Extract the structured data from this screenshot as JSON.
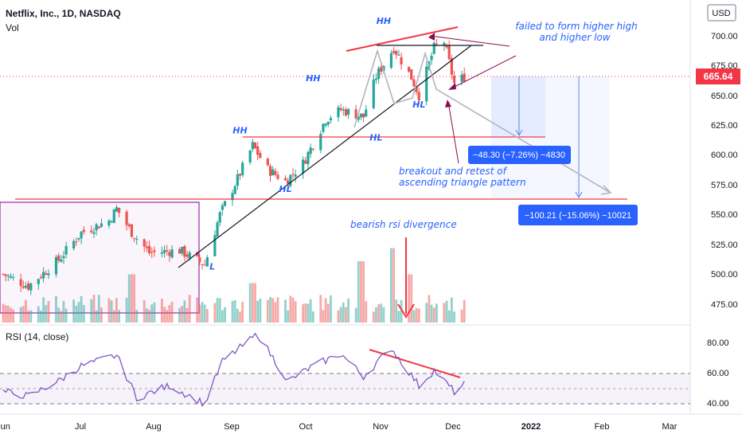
{
  "header": {
    "symbol": "Netflix, Inc., 1D, NASDAQ",
    "volume_label": "Vol",
    "currency": "USD"
  },
  "rsi_panel": {
    "label": "RSI (14, close)",
    "ticks": [
      "80.00",
      "60.00",
      "40.00"
    ]
  },
  "price_axis": {
    "ticks": [
      "700.00",
      "675.00",
      "650.00",
      "625.00",
      "600.00",
      "575.00",
      "550.00",
      "525.00",
      "500.00",
      "475.00"
    ],
    "current_price": "665.64"
  },
  "time_axis": {
    "labels": [
      "Jun",
      "Jul",
      "Aug",
      "Sep",
      "Oct",
      "Nov",
      "Dec",
      "2022",
      "Feb",
      "Mar"
    ]
  },
  "annotations": {
    "failed": [
      "failed to form higher high",
      "and higher low"
    ],
    "breakout": [
      "breakout and retest of",
      "ascending triangle pattern"
    ],
    "rsi_div": "bearish rsi divergence",
    "target1": "−48.30 (−7.26%) −4830",
    "target2": "−100.21 (−15.06%) −10021"
  },
  "pattern_labels": [
    {
      "text": "HH",
      "time": "2021-09-02",
      "price": 618
    },
    {
      "text": "HH",
      "time": "2021-10-01",
      "price": 662
    },
    {
      "text": "HH",
      "time": "2021-10-29",
      "price": 710
    },
    {
      "text": "HL",
      "time": "2021-09-20",
      "price": 569
    },
    {
      "text": "HL",
      "time": "2021-10-26",
      "price": 612
    },
    {
      "text": "HL",
      "time": "2021-11-12",
      "price": 640
    },
    {
      "text": "L",
      "time": "2021-08-22",
      "price": 504
    }
  ],
  "colors": {
    "up": "#26a69a",
    "down": "#ef5350",
    "annotation": "#2962ff",
    "rsi": "#7e57c2",
    "resistance": "#f23645",
    "price_tag": "#f23645",
    "target_box": "#2962ff"
  },
  "chart_data": [
    {
      "type": "candlestick",
      "title": "Netflix, Inc., 1D, NASDAQ",
      "ylim": [
        465,
        735
      ],
      "xlim": [
        "2021-05-31",
        "2022-03-04"
      ],
      "anchors": [
        {
          "time": "2021-05-31",
          "close": 500
        },
        {
          "time": "2021-06-10",
          "close": 490
        },
        {
          "time": "2021-06-22",
          "close": 512
        },
        {
          "time": "2021-07-01",
          "close": 535
        },
        {
          "time": "2021-07-12",
          "close": 545
        },
        {
          "time": "2021-07-15",
          "close": 555
        },
        {
          "time": "2021-07-21",
          "close": 535
        },
        {
          "time": "2021-07-28",
          "close": 518
        },
        {
          "time": "2021-08-09",
          "close": 520
        },
        {
          "time": "2021-08-19",
          "close": 508
        },
        {
          "time": "2021-08-25",
          "close": 550
        },
        {
          "time": "2021-09-01",
          "close": 580
        },
        {
          "time": "2021-09-07",
          "close": 608
        },
        {
          "time": "2021-09-13",
          "close": 588
        },
        {
          "time": "2021-09-20",
          "close": 578
        },
        {
          "time": "2021-09-27",
          "close": 593
        },
        {
          "time": "2021-10-06",
          "close": 630
        },
        {
          "time": "2021-10-12",
          "close": 638
        },
        {
          "time": "2021-10-21",
          "close": 632
        },
        {
          "time": "2021-10-26",
          "close": 666
        },
        {
          "time": "2021-11-02",
          "close": 690
        },
        {
          "time": "2021-11-09",
          "close": 665
        },
        {
          "time": "2021-11-12",
          "close": 650
        },
        {
          "time": "2021-11-18",
          "close": 690
        },
        {
          "time": "2021-11-22",
          "close": 695
        },
        {
          "time": "2021-11-26",
          "close": 660
        },
        {
          "time": "2021-11-30",
          "close": 665.64
        }
      ]
    },
    {
      "type": "bar",
      "title": "Vol",
      "note": "volume histogram, relative heights",
      "spikes": [
        {
          "time": "2021-07-21",
          "rel": 0.55
        },
        {
          "time": "2021-09-07",
          "rel": 0.45
        },
        {
          "time": "2021-10-20",
          "rel": 0.7
        },
        {
          "time": "2021-11-01",
          "rel": 0.85
        },
        {
          "time": "2021-11-08",
          "rel": 0.55
        }
      ]
    },
    {
      "type": "line",
      "title": "RSI (14, close)",
      "ylim": [
        35,
        90
      ],
      "bands": [
        40,
        50,
        60
      ],
      "anchors": [
        {
          "time": "2021-05-31",
          "value": 48
        },
        {
          "time": "2021-06-10",
          "value": 45
        },
        {
          "time": "2021-06-22",
          "value": 55
        },
        {
          "time": "2021-07-01",
          "value": 65
        },
        {
          "time": "2021-07-15",
          "value": 72
        },
        {
          "time": "2021-07-23",
          "value": 44
        },
        {
          "time": "2021-08-05",
          "value": 52
        },
        {
          "time": "2021-08-19",
          "value": 40
        },
        {
          "time": "2021-08-26",
          "value": 68
        },
        {
          "time": "2021-09-09",
          "value": 86
        },
        {
          "time": "2021-09-21",
          "value": 55
        },
        {
          "time": "2021-10-01",
          "value": 65
        },
        {
          "time": "2021-10-12",
          "value": 73
        },
        {
          "time": "2021-10-21",
          "value": 58
        },
        {
          "time": "2021-11-01",
          "value": 77
        },
        {
          "time": "2021-11-12",
          "value": 52
        },
        {
          "time": "2021-11-18",
          "value": 62
        },
        {
          "time": "2021-11-26",
          "value": 48
        },
        {
          "time": "2021-11-30",
          "value": 53
        }
      ]
    }
  ]
}
